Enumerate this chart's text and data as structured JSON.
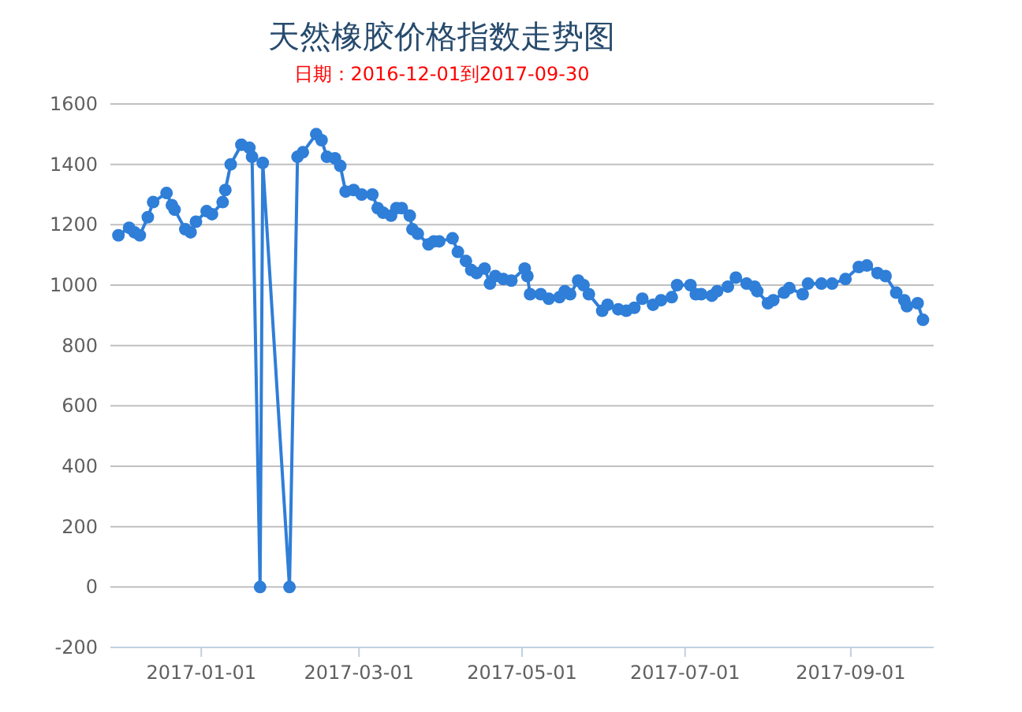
{
  "chart_data": {
    "type": "line",
    "title": "天然橡胶价格指数走势图",
    "subtitle": "日期：2016-12-01到2017-09-30",
    "x": [
      "2016-12-01",
      "2016-12-05",
      "2016-12-07",
      "2016-12-09",
      "2016-12-12",
      "2016-12-14",
      "2016-12-19",
      "2016-12-21",
      "2016-12-22",
      "2016-12-26",
      "2016-12-28",
      "2016-12-30",
      "2017-01-03",
      "2017-01-05",
      "2017-01-09",
      "2017-01-10",
      "2017-01-12",
      "2017-01-16",
      "2017-01-19",
      "2017-01-20",
      "2017-01-23",
      "2017-01-24",
      "2017-02-03",
      "2017-02-06",
      "2017-02-08",
      "2017-02-13",
      "2017-02-15",
      "2017-02-17",
      "2017-02-20",
      "2017-02-22",
      "2017-02-24",
      "2017-02-27",
      "2017-03-02",
      "2017-03-06",
      "2017-03-08",
      "2017-03-10",
      "2017-03-13",
      "2017-03-15",
      "2017-03-17",
      "2017-03-20",
      "2017-03-21",
      "2017-03-23",
      "2017-03-27",
      "2017-03-29",
      "2017-03-31",
      "2017-04-05",
      "2017-04-07",
      "2017-04-10",
      "2017-04-12",
      "2017-04-14",
      "2017-04-17",
      "2017-04-19",
      "2017-04-21",
      "2017-04-24",
      "2017-04-27",
      "2017-05-02",
      "2017-05-03",
      "2017-05-04",
      "2017-05-08",
      "2017-05-11",
      "2017-05-15",
      "2017-05-17",
      "2017-05-19",
      "2017-05-22",
      "2017-05-24",
      "2017-05-26",
      "2017-05-31",
      "2017-06-02",
      "2017-06-06",
      "2017-06-09",
      "2017-06-12",
      "2017-06-15",
      "2017-06-19",
      "2017-06-22",
      "2017-06-26",
      "2017-06-28",
      "2017-07-03",
      "2017-07-05",
      "2017-07-07",
      "2017-07-11",
      "2017-07-13",
      "2017-07-17",
      "2017-07-20",
      "2017-07-24",
      "2017-07-27",
      "2017-07-28",
      "2017-08-01",
      "2017-08-03",
      "2017-08-07",
      "2017-08-09",
      "2017-08-14",
      "2017-08-16",
      "2017-08-21",
      "2017-08-25",
      "2017-08-30",
      "2017-09-04",
      "2017-09-07",
      "2017-09-11",
      "2017-09-14",
      "2017-09-18",
      "2017-09-21",
      "2017-09-22",
      "2017-09-26",
      "2017-09-28"
    ],
    "series": [
      {
        "color": "#2f7ed8",
        "values": [
          1165,
          1190,
          1175,
          1165,
          1225,
          1275,
          1305,
          1265,
          1250,
          1185,
          1175,
          1210,
          1245,
          1235,
          1275,
          1315,
          1400,
          1465,
          1455,
          1425,
          0,
          1405,
          0,
          1425,
          1440,
          1500,
          1480,
          1425,
          1420,
          1395,
          1310,
          1315,
          1300,
          1300,
          1255,
          1240,
          1230,
          1255,
          1255,
          1230,
          1185,
          1170,
          1135,
          1145,
          1145,
          1155,
          1110,
          1080,
          1050,
          1040,
          1055,
          1005,
          1030,
          1020,
          1015,
          1055,
          1030,
          970,
          970,
          955,
          960,
          980,
          970,
          1015,
          1000,
          970,
          915,
          935,
          920,
          915,
          925,
          955,
          935,
          950,
          960,
          1000,
          1000,
          970,
          970,
          965,
          980,
          995,
          1025,
          1005,
          995,
          980,
          940,
          950,
          975,
          990,
          970,
          1005,
          1005,
          1005,
          1020,
          1060,
          1065,
          1040,
          1030,
          975,
          950,
          930,
          940,
          885
        ]
      }
    ],
    "xlim": [
      "2016-11-28",
      "2017-10-02"
    ],
    "xticks": [
      {
        "value": "2017-01-01",
        "label": "2017-01-01"
      },
      {
        "value": "2017-03-01",
        "label": "2017-03-01"
      },
      {
        "value": "2017-05-01",
        "label": "2017-05-01"
      },
      {
        "value": "2017-07-01",
        "label": "2017-07-01"
      },
      {
        "value": "2017-09-01",
        "label": "2017-09-01"
      }
    ],
    "ylim": [
      -200,
      1600
    ],
    "yticks": [
      -200,
      0,
      200,
      400,
      600,
      800,
      1000,
      1200,
      1400,
      1600
    ],
    "grid": "y",
    "marker": "circle",
    "line_style": "solid"
  }
}
